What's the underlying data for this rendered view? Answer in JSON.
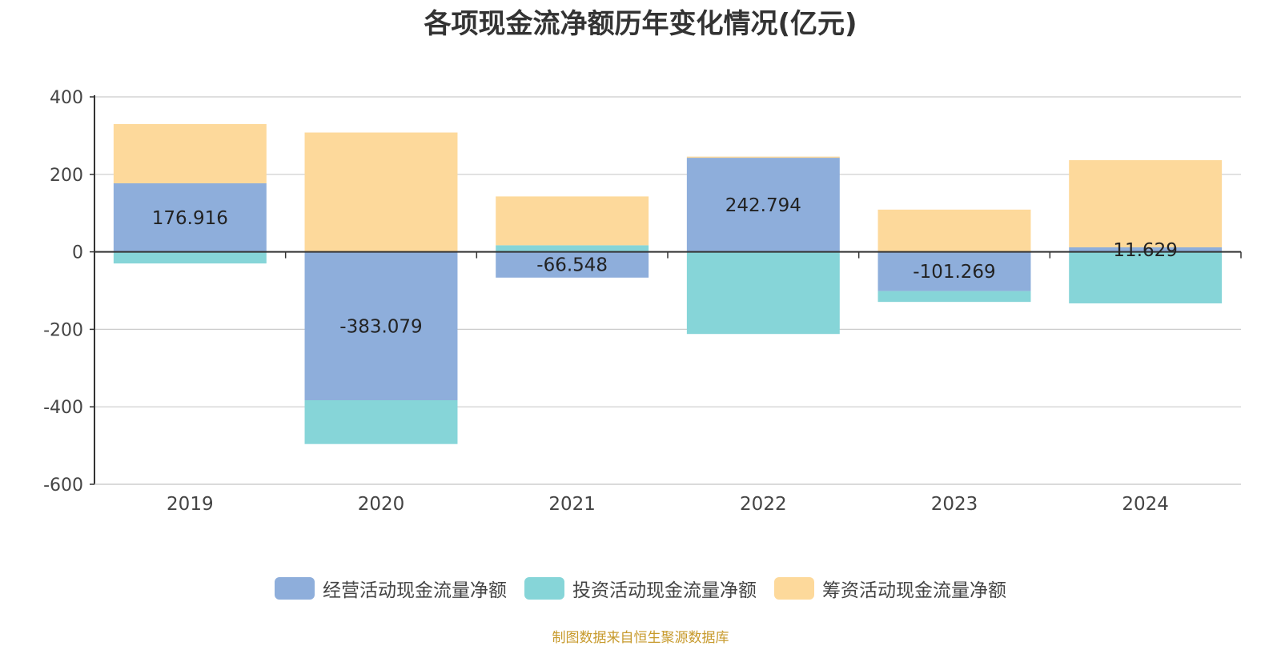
{
  "title": "各项现金流净额历年变化情况(亿元)",
  "source_note": "制图数据来自恒生聚源数据库",
  "colors": {
    "operating": "#8eaedb",
    "investing": "#86d5d8",
    "financing": "#fdd99b",
    "axis": "#333333",
    "grid": "#cccccc"
  },
  "chart_data": {
    "type": "bar",
    "stacked": true,
    "categories": [
      "2019",
      "2020",
      "2021",
      "2022",
      "2023",
      "2024"
    ],
    "ylim": [
      -600,
      400
    ],
    "yticks": [
      400,
      200,
      0,
      -200,
      -400,
      -600
    ],
    "grid": true,
    "legend_position": "bottom",
    "series": [
      {
        "name": "经营活动现金流量净额",
        "color_key": "operating",
        "values": [
          176.916,
          -383.079,
          -66.548,
          242.794,
          -101.269,
          11.629
        ],
        "labels": [
          "176.916",
          "-383.079",
          "-66.548",
          "242.794",
          "-101.269",
          "11.629"
        ]
      },
      {
        "name": "投资活动现金流量净额",
        "color_key": "investing",
        "values": [
          -30,
          -113,
          17,
          -212,
          -28,
          -133
        ]
      },
      {
        "name": "筹资活动现金流量净额",
        "color_key": "financing",
        "values": [
          153,
          308,
          126,
          3,
          109,
          225
        ]
      }
    ]
  }
}
